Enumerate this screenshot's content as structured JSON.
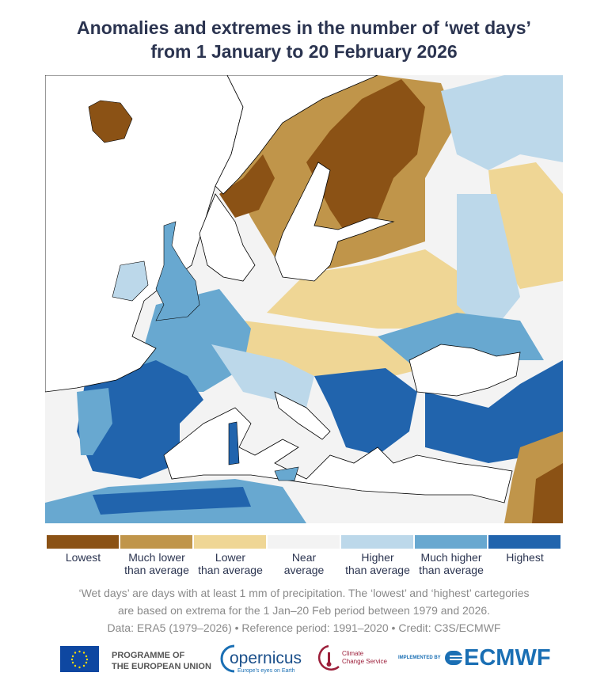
{
  "title_line1": "Anomalies and extremes in the number of ‘wet days’",
  "title_line2": "from 1 January to 20 February 2026",
  "legend": [
    {
      "label1": "Lowest",
      "label2": "",
      "color": "#8b5215"
    },
    {
      "label1": "Much lower",
      "label2": "than average",
      "color": "#c0954a"
    },
    {
      "label1": "Lower",
      "label2": "than average",
      "color": "#efd695"
    },
    {
      "label1": "Near",
      "label2": "average",
      "color": "#f3f3f3"
    },
    {
      "label1": "Higher",
      "label2": "than average",
      "color": "#bcd8ea"
    },
    {
      "label1": "Much higher",
      "label2": "than average",
      "color": "#68a8d0"
    },
    {
      "label1": "Highest",
      "label2": "",
      "color": "#2164ad"
    }
  ],
  "note_line1": "‘Wet days’ are days with at least 1 mm of precipitation. The ‘lowest’ and ‘highest’ cartegories",
  "note_line2": "are based on extrema for the 1 Jan–20 Feb period between 1979 and 2026.",
  "note_line3": "Data: ERA5 (1979–2026) • Reference period: 1991–2020 • Credit: C3S/ECMWF",
  "logos": {
    "eu_line1": "PROGRAMME OF",
    "eu_line2": "THE EUROPEAN UNION",
    "copernicus": "opernicus",
    "copernicus_tag": "Europe's eyes on Earth",
    "c3s_line1": "Climate",
    "c3s_line2": "Change Service",
    "implemented_by": "IMPLEMENTED BY",
    "ecmwf": "ECMWF"
  }
}
